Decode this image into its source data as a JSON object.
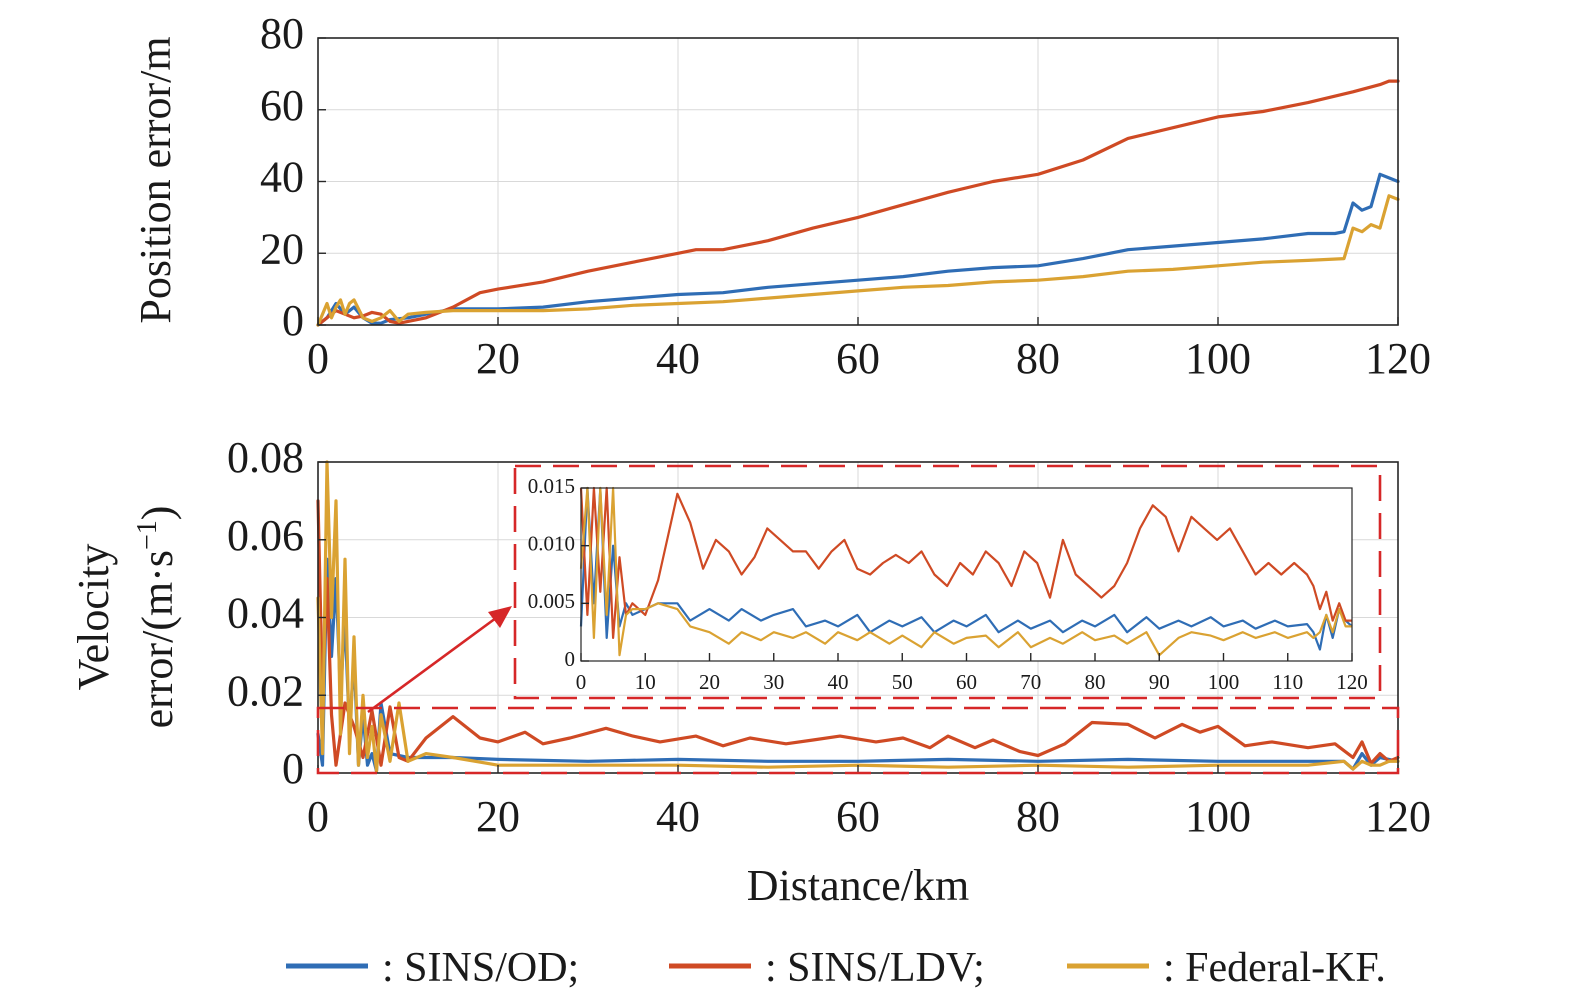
{
  "colors": {
    "sins_od": "#2f6db5",
    "sins_ldv": "#cf4a24",
    "federal_kf": "#daa232",
    "highlight": "#d62728"
  },
  "legend": [
    {
      "series": "SINS/OD",
      "text": ": SINS/OD;",
      "color": "#2f6db5"
    },
    {
      "series": "SINS/LDV",
      "text": ": SINS/LDV;",
      "color": "#cf4a24"
    },
    {
      "series": "Federal-KF",
      "text": ": Federal-KF.",
      "color": "#daa232"
    }
  ],
  "chart_data": [
    {
      "type": "line",
      "ylabel": "Position error/m",
      "xlabel": "",
      "xlim": [
        0,
        120
      ],
      "ylim": [
        0,
        80
      ],
      "xticks": [
        "0",
        "20",
        "40",
        "60",
        "80",
        "100",
        "120"
      ],
      "yticks": [
        "0",
        "20",
        "40",
        "60",
        "80"
      ],
      "grid": true,
      "series": [
        {
          "name": "SINS/OD",
          "color": "#2f6db5",
          "x": [
            0,
            1,
            2,
            3,
            4,
            5,
            6,
            7,
            8,
            10,
            12,
            15,
            20,
            25,
            30,
            35,
            40,
            45,
            50,
            55,
            60,
            65,
            70,
            75,
            80,
            85,
            90,
            95,
            100,
            105,
            110,
            113,
            114,
            115,
            116,
            117,
            118,
            119,
            120
          ],
          "y": [
            0,
            2,
            6,
            3,
            5,
            2,
            0.5,
            0.5,
            1.5,
            2,
            3,
            4.5,
            4.5,
            5,
            6.5,
            7.5,
            8.5,
            9,
            10.5,
            11.5,
            12.5,
            13.5,
            15,
            16,
            16.5,
            18.5,
            21,
            22,
            23,
            24,
            25.5,
            25.5,
            26,
            34,
            32,
            33,
            42,
            41,
            40
          ]
        },
        {
          "name": "SINS/LDV",
          "color": "#cf4a24",
          "x": [
            0,
            1,
            2,
            3,
            4,
            5,
            6,
            7,
            8,
            9,
            10,
            12,
            15,
            18,
            20,
            25,
            30,
            35,
            40,
            42,
            45,
            50,
            55,
            60,
            65,
            70,
            75,
            80,
            85,
            90,
            95,
            100,
            105,
            110,
            115,
            118,
            119,
            120
          ],
          "y": [
            0,
            2,
            4,
            3,
            2,
            2.5,
            3.5,
            3,
            1,
            0.5,
            1,
            2,
            5,
            9,
            10,
            12,
            15,
            17.5,
            20,
            21,
            21,
            23.5,
            27,
            30,
            33.5,
            37,
            40,
            42,
            46,
            52,
            55,
            58,
            59.5,
            62,
            65,
            67,
            68,
            68
          ]
        },
        {
          "name": "Federal-KF",
          "color": "#daa232",
          "x": [
            0,
            0.5,
            1,
            1.5,
            2,
            2.5,
            3,
            3.5,
            4,
            5,
            6,
            7,
            8,
            9,
            10,
            12,
            15,
            20,
            25,
            30,
            35,
            40,
            45,
            50,
            55,
            60,
            65,
            70,
            75,
            80,
            85,
            90,
            95,
            100,
            105,
            110,
            114,
            115,
            116,
            117,
            118,
            119,
            120
          ],
          "y": [
            0,
            3,
            6,
            2,
            5,
            7,
            3,
            6,
            7,
            2,
            1,
            2,
            4,
            1,
            3,
            3.5,
            4,
            4,
            4,
            4.5,
            5.5,
            6,
            6.5,
            7.5,
            8.5,
            9.5,
            10.5,
            11,
            12,
            12.5,
            13.5,
            15,
            15.5,
            16.5,
            17.5,
            18,
            18.5,
            27,
            26,
            28,
            27,
            36,
            35
          ]
        }
      ]
    },
    {
      "type": "line",
      "ylabel": "Velocity error/(m·s⁻¹)",
      "ylabel_line1": "Velocity",
      "ylabel_line2": "error/(m·s",
      "ylabel_sup": "−1",
      "ylabel_close": ")",
      "xlabel": "Distance/km",
      "xlim": [
        0,
        120
      ],
      "ylim": [
        0,
        0.08
      ],
      "xticks": [
        "0",
        "20",
        "40",
        "60",
        "80",
        "100",
        "120"
      ],
      "yticks": [
        "0",
        "0.02",
        "0.04",
        "0.06",
        "0.08"
      ],
      "grid": true,
      "series": [
        {
          "name": "SINS/OD",
          "color": "#2f6db5",
          "x": [
            0,
            0.5,
            1,
            1.5,
            2,
            2.5,
            3,
            3.5,
            4,
            4.5,
            5,
            5.5,
            6,
            6.5,
            7,
            8,
            10,
            15,
            20,
            30,
            40,
            50,
            60,
            70,
            80,
            90,
            100,
            110,
            114,
            115,
            116,
            117,
            118,
            119,
            120
          ],
          "y": [
            0.01,
            0.002,
            0.055,
            0.03,
            0.05,
            0.02,
            0.04,
            0.01,
            0.03,
            0.002,
            0.015,
            0.002,
            0.005,
            0.0005,
            0.018,
            0.005,
            0.004,
            0.004,
            0.0035,
            0.003,
            0.0035,
            0.003,
            0.003,
            0.0035,
            0.003,
            0.0035,
            0.003,
            0.003,
            0.003,
            0.001,
            0.005,
            0.002,
            0.004,
            0.0035,
            0.003
          ]
        },
        {
          "name": "SINS/LDV",
          "color": "#cf4a24",
          "x": [
            0,
            0.5,
            1,
            1.5,
            2,
            3,
            4,
            5,
            6,
            7,
            8,
            9,
            10,
            12,
            15,
            18,
            20,
            23,
            25,
            28,
            32,
            35,
            38,
            42,
            45,
            48,
            52,
            55,
            58,
            62,
            65,
            68,
            70,
            73,
            75,
            78,
            80,
            83,
            86,
            90,
            93,
            96,
            98,
            100,
            103,
            106,
            110,
            113,
            115,
            116,
            117,
            118,
            119,
            120
          ],
          "y": [
            0.07,
            0.02,
            0.05,
            0.015,
            0.002,
            0.018,
            0.012,
            0.004,
            0.016,
            0.002,
            0.017,
            0.004,
            0.003,
            0.009,
            0.0145,
            0.009,
            0.008,
            0.0105,
            0.0075,
            0.009,
            0.0115,
            0.0095,
            0.008,
            0.0095,
            0.007,
            0.009,
            0.0075,
            0.0085,
            0.0095,
            0.008,
            0.009,
            0.0065,
            0.0095,
            0.0065,
            0.0085,
            0.0055,
            0.0045,
            0.0075,
            0.013,
            0.0125,
            0.009,
            0.0125,
            0.0105,
            0.012,
            0.007,
            0.008,
            0.0065,
            0.0075,
            0.004,
            0.008,
            0.0025,
            0.005,
            0.003,
            0.004
          ]
        },
        {
          "name": "Federal-KF",
          "color": "#daa232",
          "x": [
            0,
            0.5,
            1,
            1.5,
            2,
            2.5,
            3,
            3.5,
            4,
            4.5,
            5,
            5.5,
            6,
            6.5,
            7,
            8,
            9,
            10,
            12,
            15,
            20,
            30,
            40,
            50,
            60,
            70,
            80,
            90,
            100,
            110,
            114,
            115,
            116,
            117,
            118,
            119,
            120
          ],
          "y": [
            0.045,
            0.005,
            0.08,
            0.04,
            0.07,
            0.01,
            0.055,
            0.005,
            0.035,
            0.002,
            0.02,
            0.004,
            0.012,
            0.0005,
            0.015,
            0.003,
            0.018,
            0.003,
            0.005,
            0.004,
            0.002,
            0.002,
            0.002,
            0.0015,
            0.002,
            0.0015,
            0.002,
            0.0015,
            0.002,
            0.002,
            0.003,
            0.001,
            0.003,
            0.002,
            0.002,
            0.003,
            0.003
          ]
        }
      ]
    },
    {
      "type": "line",
      "role": "inset-zoom",
      "xlim": [
        0,
        120
      ],
      "ylim": [
        0,
        0.015
      ],
      "xticks": [
        "0",
        "10",
        "20",
        "30",
        "40",
        "50",
        "60",
        "70",
        "80",
        "90",
        "100",
        "110",
        "120"
      ],
      "yticks": [
        "0",
        "0.005",
        "0.010",
        "0.015"
      ],
      "series": [
        {
          "name": "SINS/OD",
          "color": "#2f6db5",
          "x": [
            0,
            1,
            2,
            3,
            4,
            5,
            6,
            7,
            8,
            10,
            12,
            15,
            17,
            20,
            23,
            25,
            28,
            30,
            33,
            35,
            38,
            40,
            43,
            45,
            48,
            50,
            53,
            55,
            58,
            60,
            63,
            65,
            68,
            70,
            73,
            75,
            78,
            80,
            83,
            85,
            88,
            90,
            93,
            95,
            98,
            100,
            103,
            105,
            108,
            110,
            113,
            114,
            115,
            116,
            117,
            118,
            119,
            120
          ],
          "y": [
            0.003,
            0.015,
            0.005,
            0.015,
            0.002,
            0.01,
            0.003,
            0.005,
            0.004,
            0.0045,
            0.005,
            0.005,
            0.0035,
            0.0045,
            0.0035,
            0.0045,
            0.0035,
            0.004,
            0.0045,
            0.003,
            0.0035,
            0.003,
            0.004,
            0.0025,
            0.0035,
            0.003,
            0.0038,
            0.0025,
            0.0035,
            0.003,
            0.004,
            0.0025,
            0.0035,
            0.0028,
            0.0035,
            0.0025,
            0.0035,
            0.003,
            0.004,
            0.0025,
            0.0038,
            0.0028,
            0.0035,
            0.003,
            0.0038,
            0.003,
            0.0035,
            0.0028,
            0.0035,
            0.003,
            0.0032,
            0.0025,
            0.001,
            0.004,
            0.002,
            0.0045,
            0.0035,
            0.003
          ]
        },
        {
          "name": "SINS/LDV",
          "color": "#cf4a24",
          "x": [
            0,
            1,
            2,
            3,
            4,
            5,
            6,
            7,
            8,
            10,
            12,
            14,
            15,
            17,
            19,
            21,
            23,
            25,
            27,
            29,
            31,
            33,
            35,
            37,
            39,
            41,
            43,
            45,
            47,
            49,
            51,
            53,
            55,
            57,
            59,
            61,
            63,
            65,
            67,
            69,
            71,
            73,
            75,
            77,
            79,
            81,
            83,
            85,
            87,
            89,
            91,
            93,
            95,
            97,
            99,
            101,
            103,
            105,
            107,
            109,
            111,
            113,
            114,
            115,
            116,
            117,
            118,
            119,
            120
          ],
          "y": [
            0.015,
            0.004,
            0.015,
            0.006,
            0.015,
            0.002,
            0.009,
            0.004,
            0.005,
            0.004,
            0.007,
            0.012,
            0.0145,
            0.012,
            0.008,
            0.0105,
            0.0095,
            0.0075,
            0.009,
            0.0115,
            0.0105,
            0.0095,
            0.0095,
            0.008,
            0.0095,
            0.0105,
            0.008,
            0.0075,
            0.0085,
            0.0092,
            0.0085,
            0.0095,
            0.0075,
            0.0065,
            0.0085,
            0.0075,
            0.0095,
            0.0085,
            0.0065,
            0.0095,
            0.0085,
            0.0055,
            0.0105,
            0.0075,
            0.0065,
            0.0055,
            0.0065,
            0.0085,
            0.0115,
            0.0135,
            0.0125,
            0.0095,
            0.0125,
            0.0115,
            0.0105,
            0.0115,
            0.0095,
            0.0075,
            0.0085,
            0.0075,
            0.0085,
            0.0075,
            0.0065,
            0.0045,
            0.006,
            0.0035,
            0.005,
            0.0035,
            0.0035
          ]
        },
        {
          "name": "Federal-KF",
          "color": "#daa232",
          "x": [
            0,
            1,
            2,
            3,
            4,
            5,
            6,
            7,
            8,
            10,
            12,
            15,
            17,
            20,
            23,
            25,
            28,
            30,
            33,
            35,
            38,
            40,
            43,
            45,
            48,
            50,
            53,
            55,
            58,
            60,
            63,
            65,
            68,
            70,
            73,
            75,
            78,
            80,
            83,
            85,
            88,
            90,
            93,
            95,
            98,
            100,
            103,
            105,
            108,
            110,
            113,
            114,
            115,
            116,
            117,
            118,
            119,
            120
          ],
          "y": [
            0.008,
            0.015,
            0.002,
            0.015,
            0.004,
            0.015,
            0.0005,
            0.004,
            0.0045,
            0.0045,
            0.005,
            0.0045,
            0.003,
            0.0025,
            0.0015,
            0.0025,
            0.0018,
            0.0025,
            0.002,
            0.0025,
            0.0015,
            0.0025,
            0.0018,
            0.0025,
            0.0015,
            0.0022,
            0.0012,
            0.0025,
            0.0015,
            0.002,
            0.0022,
            0.0012,
            0.0025,
            0.0012,
            0.002,
            0.0015,
            0.0025,
            0.0018,
            0.0022,
            0.0015,
            0.0025,
            0.0005,
            0.002,
            0.0025,
            0.0022,
            0.0018,
            0.0025,
            0.002,
            0.0025,
            0.002,
            0.0025,
            0.002,
            0.0025,
            0.004,
            0.0025,
            0.0045,
            0.003,
            0.003
          ]
        }
      ]
    }
  ]
}
